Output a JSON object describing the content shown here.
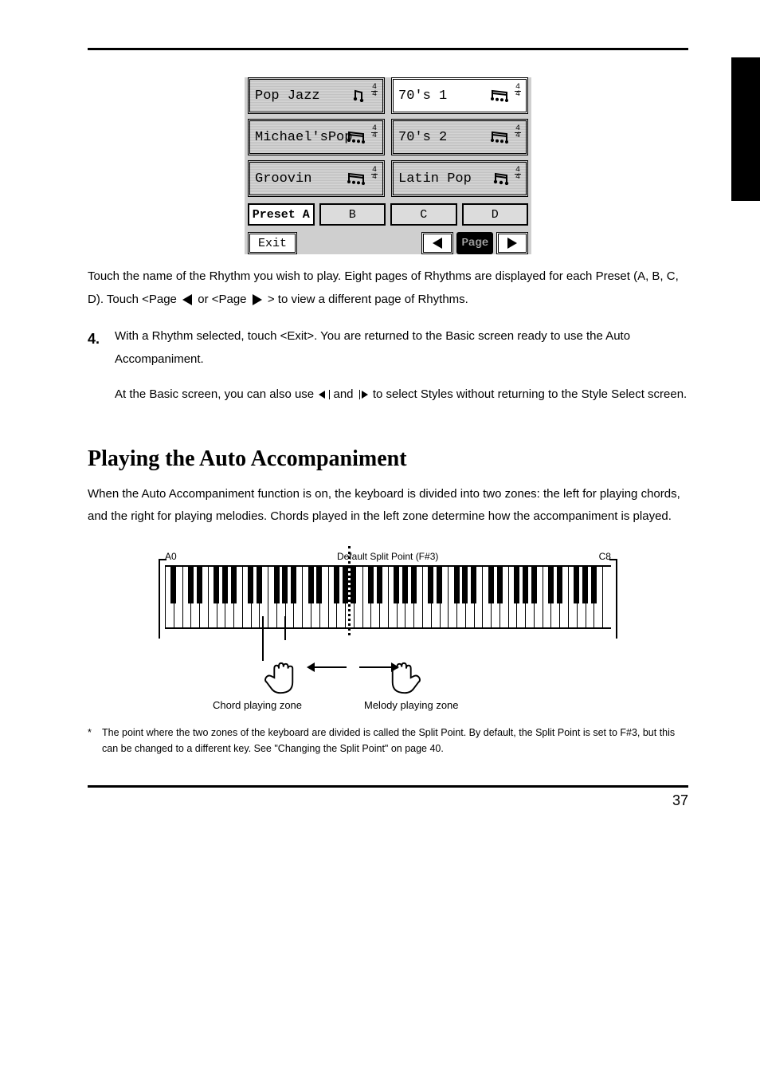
{
  "page_number": "37",
  "lcd": {
    "rhythms": [
      {
        "name": "Pop Jazz",
        "ts_top": "4",
        "ts_bot": "4",
        "beam": "single",
        "selected": false
      },
      {
        "name": "70's 1",
        "ts_top": "4",
        "ts_bot": "4",
        "beam": "triple",
        "selected": true
      },
      {
        "name": "Michael'sPop",
        "ts_top": "4",
        "ts_bot": "4",
        "beam": "triple",
        "selected": false
      },
      {
        "name": "70's 2",
        "ts_top": "4",
        "ts_bot": "4",
        "beam": "triple",
        "selected": false
      },
      {
        "name": "Groovin",
        "ts_top": "4",
        "ts_bot": "4",
        "beam": "triple",
        "selected": false
      },
      {
        "name": "Latin Pop",
        "ts_top": "4",
        "ts_bot": "4",
        "beam": "double",
        "selected": false
      }
    ],
    "preset_tabs": [
      "Preset A",
      "B",
      "C",
      "D"
    ],
    "preset_selected_index": 0,
    "exit_label": "Exit",
    "page_label": "Page"
  },
  "para_after_lcd": "Touch the name of the Rhythm you wish to play. Eight pages of Rhythms are displayed for each Preset (A, B, C, D). Touch <Page",
  "para_after_lcd_2": "> to view a different page of Rhythms.",
  "step4": {
    "num": "4.",
    "text_a": "With a Rhythm selected, touch <Exit>. You are returned to the Basic screen ready to use the Auto Accompaniment.",
    "text_b": "At the Basic screen, you can also use",
    "text_c": " to select Styles without returning to the Style Select screen."
  },
  "h2": "Playing the Auto Accompaniment",
  "para_kbd_intro": "When the Auto Accompaniment function is on, the keyboard is divided into two zones: the left for playing chords, and the right for playing melodies. Chords played in the left zone determine how the accompaniment is played.",
  "keyboard": {
    "white_key_count": 52,
    "octave_black_offsets_pct": [
      9,
      22,
      48,
      61,
      74
    ],
    "labels": {
      "a0": "A0",
      "split_default": "Default Split Point (F#3)",
      "c8": "C8",
      "chord_zone": "Chord playing zone",
      "melody_zone": "Melody playing zone"
    }
  },
  "note": "The point where the two zones of the keyboard are divided is called the Split Point. By default, the Split Point is set to F#3, but this can be changed to a different key. See \"Changing the Split Point\" on page 40."
}
